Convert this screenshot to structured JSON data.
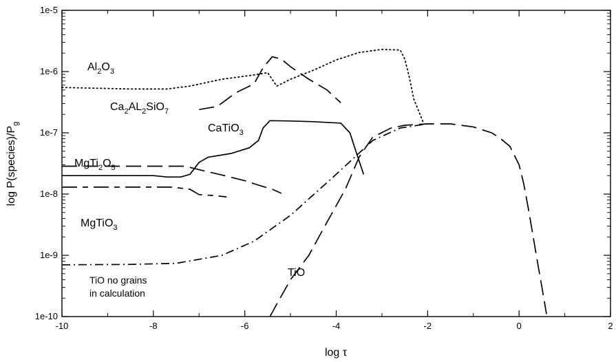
{
  "chart_data": {
    "type": "line",
    "xlabel": "log τ",
    "ylabel": "log P(species)/Pg",
    "xlim": [
      -10,
      2
    ],
    "ylim_log10": [
      -10,
      -5
    ],
    "x_ticks": [
      "-10",
      "-8",
      "-6",
      "-4",
      "-2",
      "0",
      "2"
    ],
    "y_ticks": [
      "1e-10",
      "1e-9",
      "1e-8",
      "1e-7",
      "1e-6",
      "1e-5"
    ],
    "grid": false,
    "series": [
      {
        "name": "Al2O3",
        "style": "dotted",
        "points": [
          [
            -10,
            5.5e-07
          ],
          [
            -8.5,
            5.2e-07
          ],
          [
            -7.7,
            5.2e-07
          ],
          [
            -7.2,
            5.8e-07
          ],
          [
            -6.5,
            7.5e-07
          ],
          [
            -5.8,
            8.8e-07
          ],
          [
            -5.5,
            9.6e-07
          ],
          [
            -5.3,
            5.8e-07
          ],
          [
            -5,
            7.5e-07
          ],
          [
            -4.5,
            1.05e-06
          ],
          [
            -4,
            1.55e-06
          ],
          [
            -3.5,
            2.05e-06
          ],
          [
            -3,
            2.3e-06
          ],
          [
            -2.6,
            2.25e-06
          ],
          [
            -2.5,
            1.6e-06
          ],
          [
            -2.4,
            8e-07
          ],
          [
            -2.3,
            3.5e-07
          ],
          [
            -2.1,
            1.5e-07
          ]
        ]
      },
      {
        "name": "Ca2AL2SiO7",
        "style": "long-dash",
        "points": [
          [
            -7,
            2.4e-07
          ],
          [
            -6.6,
            2.7e-07
          ],
          [
            -6.2,
            4.5e-07
          ],
          [
            -5.8,
            6.3e-07
          ],
          [
            -5.6,
            1.15e-06
          ],
          [
            -5.4,
            1.75e-06
          ],
          [
            -5.2,
            1.6e-06
          ],
          [
            -5,
            1.2e-06
          ],
          [
            -4.6,
            7.5e-07
          ],
          [
            -4.2,
            5e-07
          ],
          [
            -3.9,
            3.1e-07
          ]
        ]
      },
      {
        "name": "CaTiO3",
        "style": "solid",
        "points": [
          [
            -10,
            2e-08
          ],
          [
            -8,
            2e-08
          ],
          [
            -7.7,
            1.9e-08
          ],
          [
            -7.4,
            1.9e-08
          ],
          [
            -7.2,
            2.1e-08
          ],
          [
            -7,
            3.3e-08
          ],
          [
            -6.8,
            4e-08
          ],
          [
            -6.3,
            4.6e-08
          ],
          [
            -5.9,
            5.7e-08
          ],
          [
            -5.7,
            7.5e-08
          ],
          [
            -5.6,
            1.2e-07
          ],
          [
            -5.45,
            1.58e-07
          ],
          [
            -5,
            1.56e-07
          ],
          [
            -4.5,
            1.52e-07
          ],
          [
            -3.9,
            1.44e-07
          ],
          [
            -3.7,
            1e-07
          ],
          [
            -3.55,
            4.5e-08
          ],
          [
            -3.4,
            2.1e-08
          ]
        ]
      },
      {
        "name": "MgTi2O5",
        "style": "long-dash",
        "points": [
          [
            -10,
            2.85e-08
          ],
          [
            -8,
            2.85e-08
          ],
          [
            -7.3,
            2.85e-08
          ],
          [
            -7,
            2.5e-08
          ],
          [
            -6.5,
            2.05e-08
          ],
          [
            -6,
            1.65e-08
          ],
          [
            -5.7,
            1.4e-08
          ],
          [
            -5.4,
            1.2e-08
          ],
          [
            -5.2,
            1.03e-08
          ]
        ]
      },
      {
        "name": "MgTiO3",
        "style": "long-short-dash",
        "points": [
          [
            -10,
            1.3e-08
          ],
          [
            -7.6,
            1.3e-08
          ],
          [
            -7.2,
            1.2e-08
          ],
          [
            -7,
            9.8e-09
          ],
          [
            -6.7,
            9.5e-09
          ],
          [
            -6.4,
            9e-09
          ]
        ]
      },
      {
        "name": "TiO no grains in calculation",
        "style": "dash-dot",
        "points": [
          [
            -10,
            7e-10
          ],
          [
            -8.5,
            7.1e-10
          ],
          [
            -7.5,
            7.4e-10
          ],
          [
            -6.5,
            1e-09
          ],
          [
            -5.8,
            1.7e-09
          ],
          [
            -5,
            4.5e-09
          ],
          [
            -4,
            2.1e-08
          ],
          [
            -3.2,
            7.5e-08
          ],
          [
            -2.6,
            1.2e-07
          ],
          [
            -2,
            1.4e-07
          ]
        ]
      },
      {
        "name": "TiO",
        "style": "long-dash",
        "points": [
          [
            -5.45,
            1e-10
          ],
          [
            -5.3,
            1.6e-10
          ],
          [
            -5,
            4e-10
          ],
          [
            -4.6,
            1e-09
          ],
          [
            -4.2,
            3.5e-09
          ],
          [
            -3.8,
            1.2e-08
          ],
          [
            -3.5,
            4e-08
          ],
          [
            -3.2,
            8.5e-08
          ],
          [
            -2.8,
            1.2e-07
          ],
          [
            -2.5,
            1.33e-07
          ],
          [
            -2,
            1.4e-07
          ],
          [
            -1.5,
            1.4e-07
          ],
          [
            -1,
            1.25e-07
          ],
          [
            -0.6,
            1e-07
          ],
          [
            -0.4,
            8e-08
          ],
          [
            -0.2,
            6e-08
          ],
          [
            0,
            3e-08
          ],
          [
            0.1,
            1.5e-08
          ],
          [
            0.2,
            6e-09
          ],
          [
            0.3,
            2.2e-09
          ],
          [
            0.4,
            8e-10
          ],
          [
            0.5,
            3e-10
          ],
          [
            0.6,
            1.1e-10
          ]
        ]
      }
    ]
  },
  "labels": {
    "al2o3": {
      "base": "Al",
      "s1": "2",
      "mid": "O",
      "s2": "3"
    },
    "ca2al2sio7": {
      "a": "Ca",
      "s1": "2",
      "b": "AL",
      "s2": "2",
      "c": "SiO",
      "s3": "7"
    },
    "catio3": {
      "base": "CaTiO",
      "s1": "3"
    },
    "mgti2o5": {
      "a": "MgTi",
      "s1": "2",
      "b": "O",
      "s2": "5"
    },
    "mgtio3": {
      "base": "MgTiO",
      "s1": "3"
    },
    "tio_nograins_line1": "TiO no grains",
    "tio_nograins_line2": "in calculation",
    "tio": "TiO",
    "ylabel_main": "log P(species)/P",
    "ylabel_sub": "g"
  }
}
